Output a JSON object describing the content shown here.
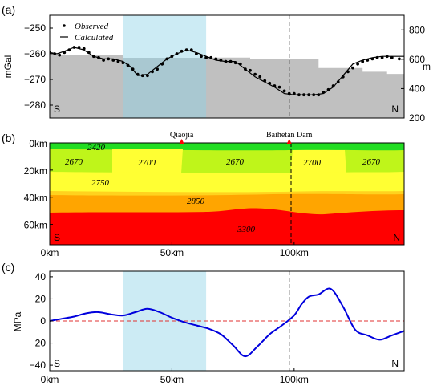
{
  "chart_data": [
    {
      "panel": "(a)",
      "type": "line",
      "xlim": [
        0,
        145
      ],
      "ylim": [
        -285,
        -245
      ],
      "ylabel": "mGal",
      "yticks": [
        "−250",
        "−260",
        "−270",
        "−280"
      ],
      "y2label": "m",
      "y2lim": [
        200,
        900
      ],
      "y2ticks": [
        "800",
        "600",
        "400",
        "200"
      ],
      "corner_left": "S",
      "corner_right": "N",
      "legend": [
        "Observed",
        "Calculated"
      ],
      "shaded_x": [
        30,
        64
      ],
      "dashed_x": 98,
      "topography": {
        "x": [
          0,
          30,
          30,
          64,
          64,
          82,
          82,
          110,
          110,
          128,
          128,
          138,
          138,
          145
        ],
        "y": [
          632,
          632,
          610,
          610,
          612,
          612,
          602,
          602,
          540,
          540,
          515,
          515,
          500,
          500
        ]
      },
      "calculated": {
        "x": [
          0,
          3,
          6,
          10,
          14,
          18,
          22,
          26,
          30,
          33,
          36,
          40,
          44,
          48,
          52,
          56,
          60,
          64,
          68,
          72,
          76,
          80,
          84,
          88,
          92,
          96,
          100,
          104,
          108,
          112,
          116,
          120,
          124,
          128,
          132,
          136,
          140,
          145
        ],
        "y": [
          -259.5,
          -260,
          -259,
          -257.5,
          -258.5,
          -261,
          -262,
          -262,
          -263,
          -265,
          -268.5,
          -268,
          -265,
          -262,
          -260,
          -258.5,
          -259.5,
          -261,
          -262.5,
          -263,
          -263,
          -266,
          -269,
          -271,
          -273,
          -275.5,
          -276,
          -276,
          -276,
          -275.5,
          -273,
          -268.5,
          -264,
          -262.5,
          -261.5,
          -261,
          -261,
          -261
        ]
      },
      "observed": {
        "x": [
          0,
          2,
          4,
          6,
          8,
          10,
          12,
          14,
          16,
          18,
          20,
          22,
          24,
          26,
          28,
          30,
          32,
          34,
          36,
          38,
          40,
          42,
          44,
          46,
          48,
          50,
          52,
          54,
          56,
          58,
          60,
          62,
          64,
          66,
          68,
          70,
          72,
          74,
          76,
          78,
          80,
          82,
          84,
          86,
          88,
          90,
          92,
          94,
          96,
          98,
          100,
          102,
          104,
          106,
          108,
          110,
          112,
          114,
          116,
          118,
          120,
          122,
          124,
          126,
          128,
          130,
          132,
          134,
          136,
          138,
          140,
          143
        ],
        "y": [
          -259.5,
          -260,
          -260.5,
          -259.5,
          -258.5,
          -257.5,
          -257.5,
          -258,
          -259.5,
          -261,
          -261.5,
          -262.5,
          -262,
          -262.5,
          -263,
          -263.5,
          -264.5,
          -266,
          -268,
          -268.5,
          -268.5,
          -267,
          -266,
          -264,
          -262,
          -261,
          -260,
          -259,
          -258.5,
          -258.5,
          -260,
          -261,
          -261.5,
          -261.5,
          -262,
          -262.5,
          -263,
          -263,
          -263.5,
          -264,
          -266,
          -266.5,
          -268,
          -269,
          -270.5,
          -271.5,
          -272.5,
          -273,
          -274.5,
          -275.5,
          -275.5,
          -276,
          -276,
          -276,
          -276,
          -276,
          -275,
          -274,
          -272.5,
          -271,
          -269,
          -267,
          -265.5,
          -264,
          -263,
          -262.5,
          -262,
          -261.5,
          -261.5,
          -261,
          -261.5,
          -262
        ]
      }
    },
    {
      "panel": "(b)",
      "type": "heatmap",
      "xlim": [
        0,
        145
      ],
      "ylim": [
        0,
        75
      ],
      "yticks": [
        "0km",
        "20km",
        "40km",
        "60km"
      ],
      "xticks": [
        "0km",
        "50km",
        "100km"
      ],
      "corner_left": "S",
      "corner_right": "N",
      "dashed_x": 98,
      "sites": [
        {
          "name": "Qiaojia",
          "x": 54
        },
        {
          "name": "Baihetan Dam",
          "x": 98
        }
      ],
      "densities": [
        "2420",
        "2670",
        "2700",
        "2670",
        "2700",
        "2670",
        "2750",
        "2850",
        "3300"
      ],
      "layer_colors": [
        "#22dd22",
        "#bff51a",
        "#ffff33",
        "#ffd21e",
        "#ffa500",
        "#ff0000"
      ]
    },
    {
      "panel": "(c)",
      "type": "line",
      "xlim": [
        0,
        145
      ],
      "ylim": [
        -45,
        45
      ],
      "ylabel": "MPa",
      "yticks": [
        "40",
        "20",
        "0",
        "−20",
        "−40"
      ],
      "xticks": [
        "0km",
        "50km",
        "100km"
      ],
      "corner_left": "S",
      "corner_right": "N",
      "shaded_x": [
        30,
        64
      ],
      "dashed_x": 98,
      "stress": {
        "x": [
          0,
          5,
          10,
          15,
          20,
          25,
          30,
          35,
          40,
          45,
          50,
          55,
          60,
          65,
          70,
          75,
          80,
          85,
          90,
          95,
          100,
          103,
          106,
          110,
          115,
          120,
          125,
          130,
          135,
          140,
          145
        ],
        "y": [
          0,
          2,
          4,
          7,
          8,
          6,
          5,
          8,
          11,
          8,
          3,
          -1,
          -4,
          -7,
          -12,
          -22,
          -32,
          -23,
          -12,
          -4,
          5,
          15,
          22,
          24,
          29,
          13,
          -8,
          -13,
          -17,
          -13,
          -9
        ]
      }
    }
  ]
}
